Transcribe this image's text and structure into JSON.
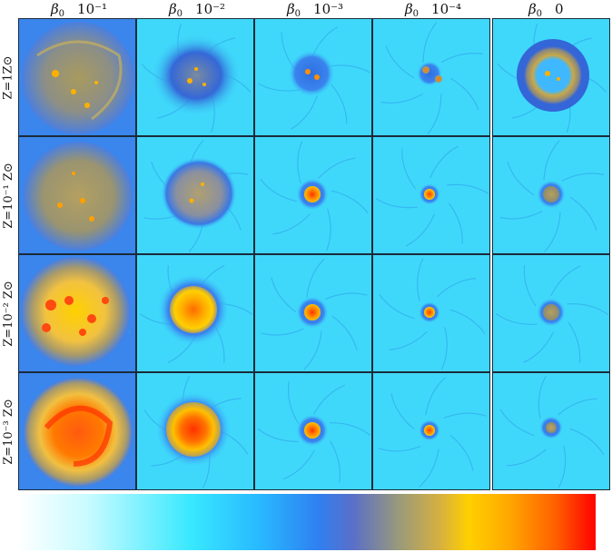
{
  "columns": [
    {
      "symbol": "β",
      "sub": "0",
      "value": "10⁻¹"
    },
    {
      "symbol": "β",
      "sub": "0",
      "value": "10⁻²"
    },
    {
      "symbol": "β",
      "sub": "0",
      "value": "10⁻³"
    },
    {
      "symbol": "β",
      "sub": "0",
      "value": "10⁻⁴"
    },
    {
      "symbol": "β",
      "sub": "0",
      "value": "0"
    }
  ],
  "rows": [
    {
      "label": "Z=1Z⊙"
    },
    {
      "label": "Z=10⁻¹ Z⊙"
    },
    {
      "label": "Z=10⁻² Z⊙"
    },
    {
      "label": "Z=10⁻³ Z⊙"
    }
  ],
  "colors": {
    "background_cyan": "#3fe0ff",
    "background_blue": "#2f7ff2",
    "ring_olive": "#a89a5e",
    "core_yellow": "#ffd000",
    "core_orange": "#ff8a00",
    "core_red": "#ff2a00"
  }
}
